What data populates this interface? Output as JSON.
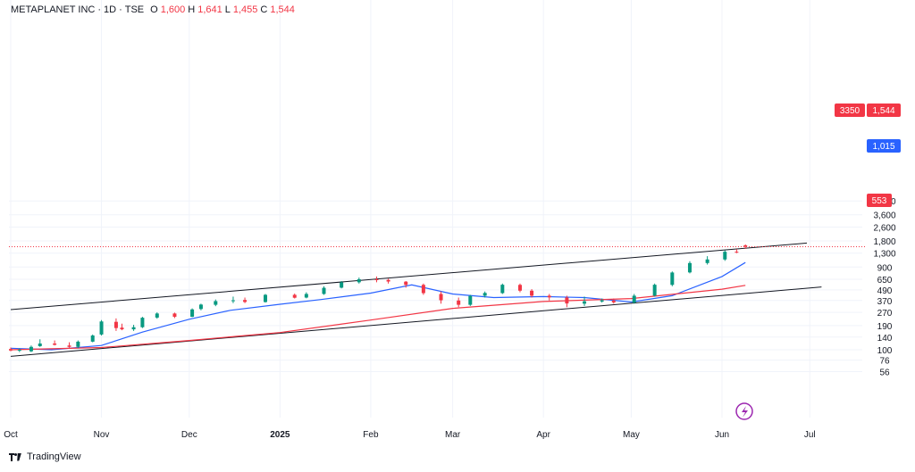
{
  "legend": {
    "symbol": "METAPLANET INC",
    "interval": "1D",
    "exchange": "TSE",
    "open_label": "O",
    "open": "1,600",
    "high_label": "H",
    "high": "1,641",
    "low_label": "L",
    "low": "1,455",
    "close_label": "C",
    "close": "1,544"
  },
  "branding": {
    "name": "TradingView"
  },
  "price_badges": {
    "last_price": "1,544",
    "countdown": "3350",
    "ma_fast": "1,015",
    "ma_slow": "553"
  },
  "colors": {
    "up": "#089981",
    "down": "#f23645",
    "ma_fast": "#2962ff",
    "ma_slow": "#f23645",
    "channel": "#131722",
    "grid": "#f0f3fa"
  },
  "icons": {
    "flash": "lightning-bolt-icon",
    "logo": "tradingview-logo-icon"
  },
  "chart_data": {
    "type": "candlestick",
    "y_scale": "log",
    "y_ticks": [
      "5,200",
      "3,600",
      "2,600",
      "1,800",
      "1,300",
      "900",
      "650",
      "490",
      "370",
      "270",
      "190",
      "140",
      "100",
      "76",
      "56"
    ],
    "x_ticks": [
      "Oct",
      "Nov",
      "Dec",
      "2025",
      "Feb",
      "Mar",
      "Apr",
      "May",
      "Jun",
      "Jul"
    ],
    "ylim": [
      45,
      5600
    ],
    "series": [
      {
        "type": "candlestick",
        "x": [
          "2024-10-01",
          "2024-10-04",
          "2024-10-08",
          "2024-10-11",
          "2024-10-16",
          "2024-10-21",
          "2024-10-24",
          "2024-10-29",
          "2024-11-01",
          "2024-11-06",
          "2024-11-08",
          "2024-11-12",
          "2024-11-15",
          "2024-11-20",
          "2024-11-26",
          "2024-12-02",
          "2024-12-05",
          "2024-12-10",
          "2024-12-16",
          "2024-12-20",
          "2024-12-27",
          "2025-01-06",
          "2025-01-10",
          "2025-01-16",
          "2025-01-22",
          "2025-01-28",
          "2025-02-03",
          "2025-02-07",
          "2025-02-13",
          "2025-02-19",
          "2025-02-25",
          "2025-03-03",
          "2025-03-07",
          "2025-03-12",
          "2025-03-18",
          "2025-03-24",
          "2025-03-28",
          "2025-04-03",
          "2025-04-09",
          "2025-04-15",
          "2025-04-21",
          "2025-04-25",
          "2025-05-02",
          "2025-05-09",
          "2025-05-15",
          "2025-05-21",
          "2025-05-27",
          "2025-06-02",
          "2025-06-06",
          "2025-06-09"
        ],
        "open": [
          102,
          98,
          96,
          110,
          118,
          112,
          108,
          124,
          150,
          210,
          180,
          172,
          182,
          235,
          262,
          240,
          295,
          330,
          365,
          375,
          355,
          430,
          400,
          440,
          520,
          600,
          650,
          640,
          610,
          560,
          440,
          370,
          330,
          420,
          450,
          560,
          480,
          420,
          400,
          340,
          360,
          370,
          350,
          420,
          560,
          780,
          1000,
          1100,
          1350,
          1600
        ],
        "high": [
          106,
          104,
          112,
          132,
          128,
          122,
          128,
          150,
          220,
          230,
          200,
          194,
          240,
          270,
          268,
          300,
          340,
          380,
          410,
          400,
          440,
          445,
          460,
          540,
          620,
          680,
          700,
          660,
          620,
          580,
          470,
          400,
          430,
          470,
          580,
          580,
          500,
          440,
          420,
          410,
          390,
          390,
          440,
          580,
          800,
          1050,
          1200,
          1400,
          1450,
          1641
        ],
        "low": [
          96,
          94,
          94,
          108,
          112,
          106,
          104,
          122,
          146,
          165,
          168,
          165,
          178,
          228,
          232,
          238,
          285,
          318,
          345,
          345,
          350,
          390,
          392,
          430,
          510,
          580,
          600,
          580,
          520,
          430,
          340,
          310,
          320,
          400,
          440,
          460,
          400,
          370,
          310,
          320,
          350,
          340,
          340,
          410,
          540,
          760,
          960,
          1060,
          1300,
          1455
        ],
        "close": [
          98,
          100,
          108,
          118,
          114,
          108,
          124,
          146,
          212,
          178,
          172,
          182,
          234,
          262,
          240,
          292,
          332,
          364,
          372,
          356,
          430,
          398,
          440,
          518,
          598,
          650,
          640,
          612,
          560,
          450,
          372,
          330,
          418,
          452,
          562,
          480,
          420,
          402,
          342,
          362,
          372,
          352,
          420,
          562,
          778,
          1000,
          1100,
          1350,
          1320,
          1544
        ]
      },
      {
        "name": "MA fast",
        "x": [
          "2024-10-01",
          "2024-10-15",
          "2024-11-01",
          "2024-11-15",
          "2024-12-01",
          "2024-12-15",
          "2025-01-01",
          "2025-01-15",
          "2025-02-01",
          "2025-02-15",
          "2025-03-01",
          "2025-03-15",
          "2025-04-01",
          "2025-04-15",
          "2025-05-01",
          "2025-05-15",
          "2025-06-01",
          "2025-06-09"
        ],
        "values": [
          104,
          100,
          112,
          160,
          225,
          285,
          335,
          380,
          450,
          560,
          440,
          400,
          410,
          400,
          355,
          420,
          700,
          1015
        ]
      },
      {
        "name": "MA slow",
        "x": [
          "2024-10-01",
          "2024-11-01",
          "2024-12-01",
          "2025-01-01",
          "2025-02-01",
          "2025-03-01",
          "2025-04-01",
          "2025-05-01",
          "2025-06-01",
          "2025-06-09"
        ],
        "values": [
          100,
          106,
          128,
          158,
          220,
          300,
          360,
          390,
          500,
          553
        ]
      }
    ],
    "channel": {
      "upper": [
        {
          "x": "2024-10-01",
          "y": 290
        },
        {
          "x": "2025-06-30",
          "y": 1700
        }
      ],
      "lower": [
        {
          "x": "2024-10-01",
          "y": 84
        },
        {
          "x": "2025-07-05",
          "y": 530
        }
      ]
    }
  }
}
